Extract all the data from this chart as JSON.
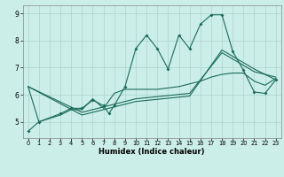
{
  "title": "",
  "xlabel": "Humidex (Indice chaleur)",
  "bg_color": "#cceee8",
  "grid_color": "#aad4cc",
  "line_color": "#1a6b5a",
  "xlim": [
    -0.5,
    23.5
  ],
  "ylim": [
    4.4,
    9.3
  ],
  "yticks": [
    5,
    6,
    7,
    8,
    9
  ],
  "xticks": [
    0,
    1,
    2,
    3,
    4,
    5,
    6,
    7,
    8,
    9,
    10,
    11,
    12,
    13,
    14,
    15,
    16,
    17,
    18,
    19,
    20,
    21,
    22,
    23
  ],
  "series_main": {
    "x": [
      0,
      1,
      3,
      4,
      5,
      6,
      7,
      7.5,
      8,
      9,
      10,
      11,
      12,
      13,
      14,
      15,
      16,
      17,
      18,
      19,
      20,
      21,
      22,
      23
    ],
    "y": [
      4.65,
      5.0,
      5.3,
      5.5,
      5.5,
      5.8,
      5.6,
      5.3,
      5.6,
      6.3,
      7.7,
      8.2,
      7.7,
      6.95,
      8.2,
      7.7,
      8.6,
      8.95,
      8.95,
      7.6,
      6.9,
      6.1,
      6.05,
      6.55
    ]
  },
  "series_upper": {
    "x": [
      0,
      1,
      3,
      4,
      5,
      6,
      7,
      8,
      9,
      10,
      11,
      12,
      13,
      14,
      15,
      16,
      17,
      18,
      19,
      20,
      21,
      22,
      23
    ],
    "y": [
      6.3,
      5.0,
      5.25,
      5.45,
      5.45,
      5.85,
      5.5,
      6.05,
      6.2,
      6.2,
      6.2,
      6.2,
      6.25,
      6.3,
      6.4,
      6.5,
      6.65,
      6.75,
      6.8,
      6.8,
      6.5,
      6.35,
      6.6
    ]
  },
  "series_mid1": {
    "x": [
      0,
      5,
      10,
      15,
      18,
      21,
      23
    ],
    "y": [
      6.3,
      5.35,
      5.85,
      6.05,
      7.55,
      6.85,
      6.65
    ]
  },
  "series_mid2": {
    "x": [
      0,
      5,
      10,
      15,
      18,
      21,
      23
    ],
    "y": [
      6.3,
      5.25,
      5.75,
      5.95,
      7.65,
      6.95,
      6.55
    ]
  }
}
